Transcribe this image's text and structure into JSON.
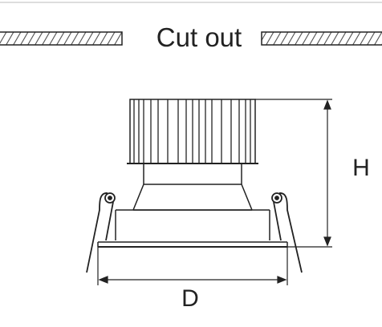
{
  "cutout": {
    "label": "Cut out"
  },
  "dimensions": {
    "height_label": "H",
    "diameter_label": "D"
  },
  "colors": {
    "line": "#222222",
    "hatch": "#444444",
    "background": "#ffffff"
  }
}
